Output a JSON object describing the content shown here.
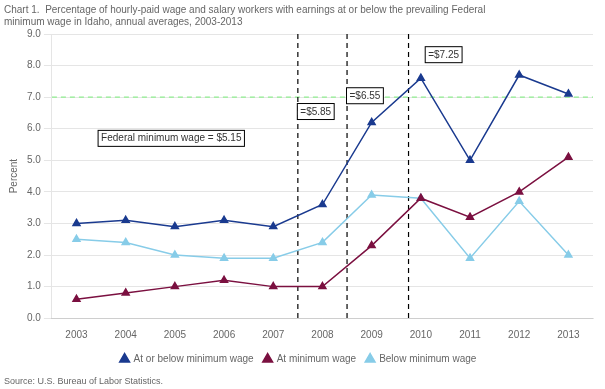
{
  "chart_data": {
    "type": "line",
    "title": [
      "Chart 1.  Percentage of hourly-paid wage and salary workers with earnings at or below the prevailing Federal",
      "minimum wage in Idaho, annual averages, 2003-2013"
    ],
    "source": "Source: U.S. Bureau of Labor Statistics.",
    "y_label": "Percent",
    "x": [
      2003,
      2004,
      2005,
      2006,
      2007,
      2008,
      2009,
      2010,
      2011,
      2012,
      2013
    ],
    "xlim": [
      2002.5,
      2013.5
    ],
    "xticks": [
      2003,
      2004,
      2005,
      2006,
      2007,
      2008,
      2009,
      2010,
      2011,
      2012,
      2013
    ],
    "ylim": [
      0.0,
      9.0
    ],
    "yticks": [
      {
        "value": 0,
        "label": "0.0"
      },
      {
        "value": 1,
        "label": "1.0"
      },
      {
        "value": 2,
        "label": "2.0"
      },
      {
        "value": 3,
        "label": "3.0"
      },
      {
        "value": 4,
        "label": "4.0"
      },
      {
        "value": 5,
        "label": "5.0"
      },
      {
        "value": 6,
        "label": "6.0"
      },
      {
        "value": 7,
        "label": "7.0"
      },
      {
        "value": 8,
        "label": "8.0"
      },
      {
        "value": 9,
        "label": "9.0"
      }
    ],
    "grid": "y",
    "legend": "bottom",
    "series": [
      {
        "name": "At or below minimum wage",
        "color": "#1a3a8f",
        "marker": "triangle",
        "values": [
          3.0,
          3.1,
          2.9,
          3.1,
          2.9,
          3.6,
          6.2,
          7.6,
          5.0,
          7.7,
          7.1
        ]
      },
      {
        "name": "At minimum wage",
        "color": "#7b1040",
        "marker": "triangle",
        "values": [
          0.6,
          0.8,
          1.0,
          1.2,
          1.0,
          1.0,
          2.3,
          3.8,
          3.2,
          4.0,
          5.1
        ]
      },
      {
        "name": "Below minimum wage",
        "color": "#87cce8",
        "marker": "triangle",
        "values": [
          2.5,
          2.4,
          2.0,
          1.9,
          1.9,
          2.4,
          3.9,
          3.8,
          1.9,
          3.7,
          2.0
        ]
      }
    ],
    "reference_lines": [
      {
        "axis": "y",
        "value": 7.0,
        "color": "#90ee90",
        "line_style": "dashed"
      },
      {
        "axis": "x",
        "value": 2007.5,
        "color": "#000000",
        "line_style": "dashed"
      },
      {
        "axis": "x",
        "value": 2008.5,
        "color": "#000000",
        "line_style": "dashed"
      },
      {
        "axis": "x",
        "value": 2009.75,
        "color": "#000000",
        "line_style": "dashed"
      }
    ],
    "annotations": [
      {
        "text": "Federal minimum wage = $5.15",
        "x": 2003.5,
        "y": 5.6
      },
      {
        "text": "=$5.85",
        "x": 2007.55,
        "y": 6.45
      },
      {
        "text": "=$6.55",
        "x": 2008.55,
        "y": 6.95
      },
      {
        "text": "=$7.25",
        "x": 2010.15,
        "y": 8.25
      }
    ]
  }
}
